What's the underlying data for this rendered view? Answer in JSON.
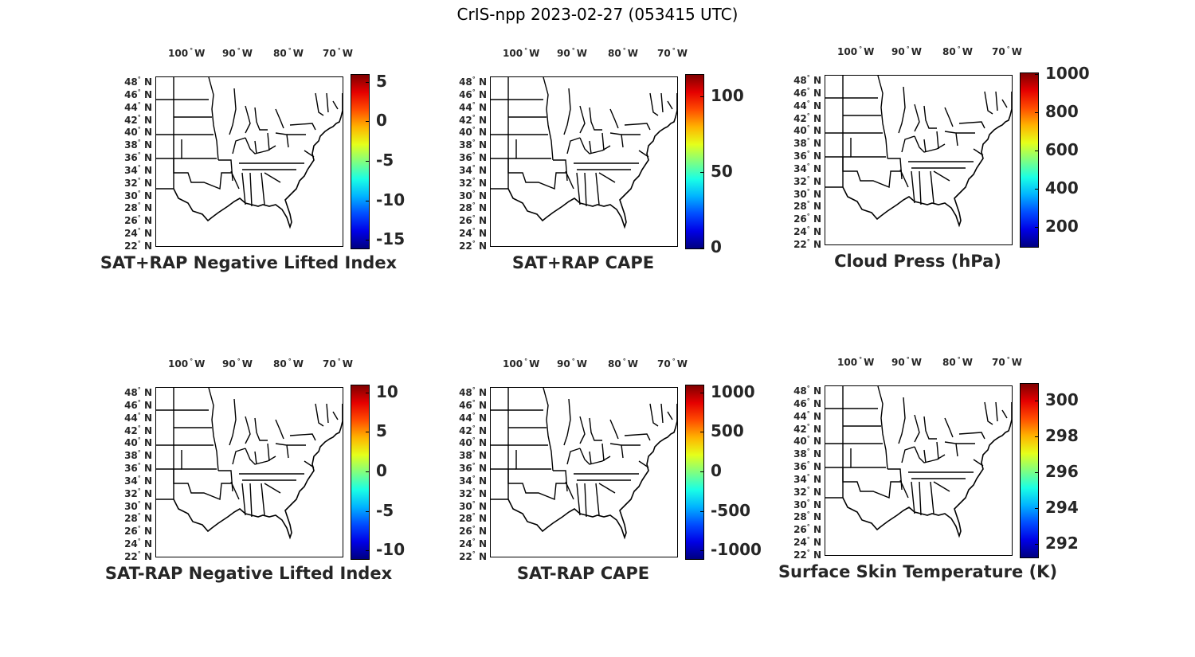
{
  "title": "CrIS-npp 2023-02-27 (053415 UTC)",
  "lon_labels": [
    "100",
    "90",
    "80",
    "70"
  ],
  "lon_suffix": "W",
  "lat_labels": [
    "48",
    "46",
    "44",
    "42",
    "40",
    "38",
    "36",
    "34",
    "32",
    "30",
    "28",
    "26",
    "24",
    "22"
  ],
  "lat_suffix": "N",
  "degree_symbol": "°",
  "colormap": "jet",
  "panels": [
    {
      "title": "SAT+RAP Negative Lifted Index",
      "range": [
        -16,
        6
      ],
      "ticks": [
        "5",
        "0",
        "-5",
        "-10",
        "-15"
      ],
      "tick_values": [
        5,
        0,
        -5,
        -10,
        -15
      ]
    },
    {
      "title": "SAT+RAP CAPE",
      "range": [
        0,
        115
      ],
      "ticks": [
        "100",
        "50",
        "0"
      ],
      "tick_values": [
        100,
        50,
        0
      ]
    },
    {
      "title": "Cloud Press (hPa)",
      "range": [
        100,
        1010
      ],
      "ticks": [
        "1000",
        "800",
        "600",
        "400",
        "200"
      ],
      "tick_values": [
        1000,
        800,
        600,
        400,
        200
      ]
    },
    {
      "title": "SAT-RAP Negative Lifted Index",
      "range": [
        -11,
        11
      ],
      "ticks": [
        "10",
        "5",
        "0",
        "-5",
        "-10"
      ],
      "tick_values": [
        10,
        5,
        0,
        -5,
        -10
      ]
    },
    {
      "title": "SAT-RAP CAPE",
      "range": [
        -1100,
        1100
      ],
      "ticks": [
        "1000",
        "500",
        "0",
        "-500",
        "-1000"
      ],
      "tick_values": [
        1000,
        500,
        0,
        -500,
        -1000
      ]
    },
    {
      "title": "Surface Skin Temperature (K)",
      "range": [
        291.3,
        301
      ],
      "ticks": [
        "300",
        "298",
        "296",
        "294",
        "292"
      ],
      "tick_values": [
        300,
        298,
        296,
        294,
        292
      ]
    }
  ]
}
